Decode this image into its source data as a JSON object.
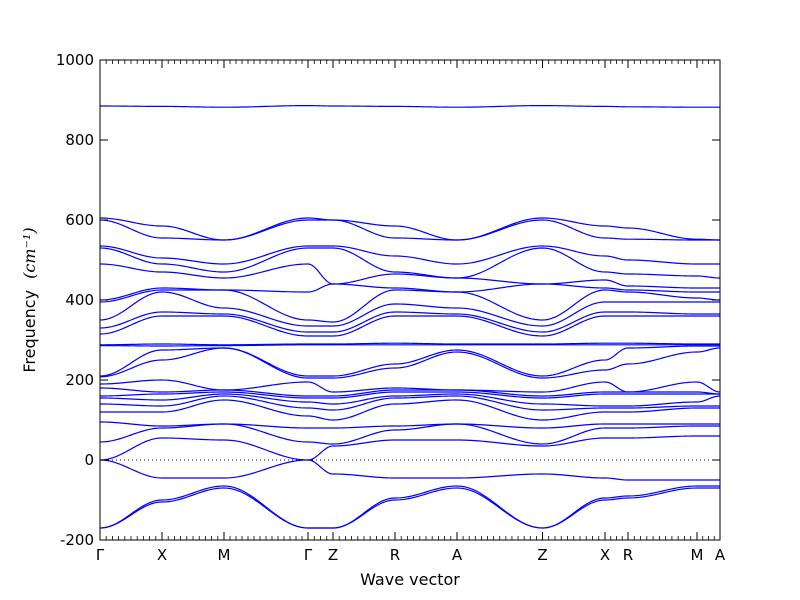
{
  "chart_data": {
    "type": "line",
    "title": "",
    "xlabel": "Wave vector",
    "ylabel": "Frequency",
    "ylabel_unit": "(cm⁻¹)",
    "ylim": [
      -200,
      1000
    ],
    "yticks": [
      -200,
      0,
      200,
      400,
      600,
      800,
      1000
    ],
    "xlim": [
      0,
      1
    ],
    "kpoints": [
      {
        "label": "Γ",
        "x": 0.0
      },
      {
        "label": "X",
        "x": 0.1
      },
      {
        "label": "M",
        "x": 0.2
      },
      {
        "label": "Γ",
        "x": 0.3355
      },
      {
        "label": "Z",
        "x": 0.3758
      },
      {
        "label": "R",
        "x": 0.4758
      },
      {
        "label": "A",
        "x": 0.5758
      },
      {
        "label": "Z",
        "x": 0.7137
      },
      {
        "label": "X",
        "x": 0.8145
      },
      {
        "label": "R",
        "x": 0.8516
      },
      {
        "label": "M",
        "x": 0.9629
      },
      {
        "label": "A",
        "x": 1.0
      }
    ],
    "zero_line": true,
    "line_color": "#0000ff",
    "series": [
      {
        "x": [
          0,
          0.1,
          0.2,
          0.3355,
          0.3758,
          0.4758,
          0.5758,
          0.7137,
          0.8145,
          0.8516,
          0.9629,
          1
        ],
        "values": [
          885,
          884,
          882,
          886,
          885,
          884,
          882,
          886,
          884,
          883,
          882,
          882
        ]
      },
      {
        "x": [
          0,
          0.1,
          0.2,
          0.3355,
          0.3758,
          0.4758,
          0.5758,
          0.7137,
          0.8145,
          0.8516,
          0.9629,
          1
        ],
        "values": [
          605,
          585,
          550,
          605,
          600,
          585,
          550,
          605,
          585,
          580,
          552,
          550
        ]
      },
      {
        "x": [
          0,
          0.1,
          0.2,
          0.3355,
          0.3758,
          0.4758,
          0.5758,
          0.7137,
          0.8145,
          0.8516,
          0.9629,
          1
        ],
        "values": [
          600,
          555,
          550,
          600,
          600,
          555,
          550,
          600,
          555,
          552,
          550,
          550
        ]
      },
      {
        "x": [
          0,
          0.1,
          0.2,
          0.3355,
          0.3758,
          0.4758,
          0.5758,
          0.7137,
          0.8145,
          0.8516,
          0.9629,
          1
        ],
        "values": [
          535,
          505,
          490,
          535,
          535,
          510,
          490,
          535,
          510,
          500,
          490,
          490
        ]
      },
      {
        "x": [
          0,
          0.1,
          0.2,
          0.3355,
          0.3758,
          0.4758,
          0.5758,
          0.7137,
          0.8145,
          0.8516,
          0.9629,
          1
        ],
        "values": [
          530,
          490,
          470,
          530,
          530,
          470,
          455,
          530,
          470,
          465,
          460,
          455
        ]
      },
      {
        "x": [
          0,
          0.1,
          0.2,
          0.3355,
          0.3758,
          0.4758,
          0.5758,
          0.7137,
          0.8145,
          0.8516,
          0.9629,
          1
        ],
        "values": [
          490,
          470,
          455,
          490,
          440,
          465,
          455,
          440,
          450,
          435,
          430,
          430
        ]
      },
      {
        "x": [
          0,
          0.1,
          0.2,
          0.3355,
          0.3758,
          0.4758,
          0.5758,
          0.7137,
          0.8145,
          0.8516,
          0.9629,
          1
        ],
        "values": [
          400,
          430,
          425,
          420,
          440,
          430,
          420,
          440,
          430,
          425,
          420,
          420
        ]
      },
      {
        "x": [
          0,
          0.1,
          0.2,
          0.3355,
          0.3758,
          0.4758,
          0.5758,
          0.7137,
          0.8145,
          0.8516,
          0.9629,
          1
        ],
        "values": [
          395,
          425,
          425,
          350,
          345,
          425,
          420,
          350,
          425,
          420,
          405,
          400
        ]
      },
      {
        "x": [
          0,
          0.1,
          0.2,
          0.3355,
          0.3758,
          0.4758,
          0.5758,
          0.7137,
          0.8145,
          0.8516,
          0.9629,
          1
        ],
        "values": [
          350,
          420,
          380,
          335,
          335,
          390,
          380,
          335,
          395,
          395,
          395,
          395
        ]
      },
      {
        "x": [
          0,
          0.1,
          0.2,
          0.3355,
          0.3758,
          0.4758,
          0.5758,
          0.7137,
          0.8145,
          0.8516,
          0.9629,
          1
        ],
        "values": [
          330,
          370,
          365,
          320,
          320,
          370,
          365,
          320,
          370,
          370,
          365,
          365
        ]
      },
      {
        "x": [
          0,
          0.1,
          0.2,
          0.3355,
          0.3758,
          0.4758,
          0.5758,
          0.7137,
          0.8145,
          0.8516,
          0.9629,
          1
        ],
        "values": [
          315,
          360,
          360,
          310,
          310,
          360,
          360,
          310,
          360,
          360,
          360,
          360
        ]
      },
      {
        "x": [
          0,
          0.1,
          0.2,
          0.3355,
          0.3758,
          0.4758,
          0.5758,
          0.7137,
          0.8145,
          0.8516,
          0.9629,
          1
        ],
        "values": [
          288,
          290,
          288,
          290,
          290,
          292,
          290,
          290,
          292,
          292,
          290,
          290
        ]
      },
      {
        "x": [
          0,
          0.1,
          0.2,
          0.3355,
          0.3758,
          0.4758,
          0.5758,
          0.7137,
          0.8145,
          0.8516,
          0.9629,
          1
        ],
        "values": [
          286,
          285,
          286,
          288,
          288,
          288,
          288,
          288,
          288,
          288,
          288,
          288
        ]
      },
      {
        "x": [
          0,
          0.1,
          0.2,
          0.3355,
          0.3758,
          0.4758,
          0.5758,
          0.7137,
          0.8145,
          0.8516,
          0.9629,
          1
        ],
        "values": [
          210,
          275,
          280,
          210,
          210,
          240,
          275,
          210,
          250,
          280,
          285,
          285
        ]
      },
      {
        "x": [
          0,
          0.1,
          0.2,
          0.3355,
          0.3758,
          0.4758,
          0.5758,
          0.7137,
          0.8145,
          0.8516,
          0.9629,
          1
        ],
        "values": [
          208,
          250,
          280,
          205,
          205,
          230,
          270,
          205,
          225,
          240,
          270,
          280
        ]
      },
      {
        "x": [
          0,
          0.1,
          0.2,
          0.3355,
          0.3758,
          0.4758,
          0.5758,
          0.7137,
          0.8145,
          0.8516,
          0.9629,
          1
        ],
        "values": [
          190,
          200,
          175,
          195,
          170,
          180,
          175,
          170,
          195,
          170,
          195,
          170
        ]
      },
      {
        "x": [
          0,
          0.1,
          0.2,
          0.3355,
          0.3758,
          0.4758,
          0.5758,
          0.7137,
          0.8145,
          0.8516,
          0.9629,
          1
        ],
        "values": [
          180,
          170,
          175,
          160,
          160,
          175,
          175,
          160,
          170,
          170,
          170,
          165
        ]
      },
      {
        "x": [
          0,
          0.1,
          0.2,
          0.3355,
          0.3758,
          0.4758,
          0.5758,
          0.7137,
          0.8145,
          0.8516,
          0.9629,
          1
        ],
        "values": [
          160,
          165,
          170,
          155,
          155,
          170,
          170,
          155,
          165,
          165,
          165,
          165
        ]
      },
      {
        "x": [
          0,
          0.1,
          0.2,
          0.3355,
          0.3758,
          0.4758,
          0.5758,
          0.7137,
          0.8145,
          0.8516,
          0.9629,
          1
        ],
        "values": [
          155,
          150,
          165,
          145,
          140,
          160,
          165,
          140,
          135,
          135,
          145,
          160
        ]
      },
      {
        "x": [
          0,
          0.1,
          0.2,
          0.3355,
          0.3758,
          0.4758,
          0.5758,
          0.7137,
          0.8145,
          0.8516,
          0.9629,
          1
        ],
        "values": [
          140,
          135,
          160,
          130,
          125,
          155,
          160,
          125,
          130,
          130,
          135,
          135
        ]
      },
      {
        "x": [
          0,
          0.1,
          0.2,
          0.3355,
          0.3758,
          0.4758,
          0.5758,
          0.7137,
          0.8145,
          0.8516,
          0.9629,
          1
        ],
        "values": [
          120,
          120,
          150,
          110,
          100,
          140,
          150,
          100,
          120,
          120,
          130,
          130
        ]
      },
      {
        "x": [
          0,
          0.1,
          0.2,
          0.3355,
          0.3758,
          0.4758,
          0.5758,
          0.7137,
          0.8145,
          0.8516,
          0.9629,
          1
        ],
        "values": [
          95,
          85,
          90,
          80,
          80,
          85,
          90,
          80,
          90,
          90,
          90,
          90
        ]
      },
      {
        "x": [
          0,
          0.1,
          0.2,
          0.3355,
          0.3758,
          0.4758,
          0.5758,
          0.7137,
          0.8145,
          0.8516,
          0.9629,
          1
        ],
        "values": [
          45,
          80,
          90,
          45,
          40,
          75,
          90,
          40,
          80,
          80,
          85,
          85
        ]
      },
      {
        "x": [
          0,
          0.1,
          0.2,
          0.3355,
          0.3758,
          0.4758,
          0.5758,
          0.7137,
          0.8145,
          0.8516,
          0.9629,
          1
        ],
        "values": [
          0,
          55,
          50,
          0,
          35,
          50,
          50,
          35,
          55,
          55,
          60,
          60
        ]
      },
      {
        "x": [
          0,
          0.1,
          0.2,
          0.3355,
          0.3758,
          0.4758,
          0.5758,
          0.7137,
          0.8145,
          0.8516,
          0.9629,
          1
        ],
        "values": [
          0,
          -45,
          -45,
          0,
          -35,
          -45,
          -45,
          -35,
          -45,
          -50,
          -50,
          -50
        ]
      },
      {
        "x": [
          0,
          0.1,
          0.2,
          0.3355,
          0.3758,
          0.4758,
          0.5758,
          0.7137,
          0.8145,
          0.8516,
          0.9629,
          1
        ],
        "values": [
          -170,
          -100,
          -65,
          -170,
          -170,
          -95,
          -65,
          -170,
          -95,
          -90,
          -65,
          -65
        ]
      },
      {
        "x": [
          0,
          0.1,
          0.2,
          0.3355,
          0.3758,
          0.4758,
          0.5758,
          0.7137,
          0.8145,
          0.8516,
          0.9629,
          1
        ],
        "values": [
          -170,
          -105,
          -70,
          -170,
          -170,
          -100,
          -70,
          -170,
          -100,
          -95,
          -70,
          -70
        ]
      }
    ]
  }
}
